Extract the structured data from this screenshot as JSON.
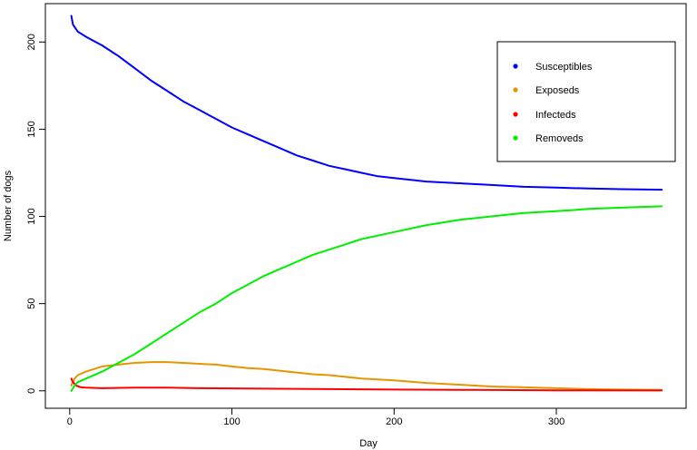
{
  "chart_data": {
    "type": "line",
    "xlabel": "Day",
    "ylabel": "Number of dogs",
    "xlim": [
      -15,
      380
    ],
    "ylim": [
      -10,
      222
    ],
    "xticks": [
      0,
      100,
      200,
      300
    ],
    "yticks": [
      0,
      50,
      100,
      150,
      200
    ],
    "legend_position": "top-right",
    "grid": false,
    "series": [
      {
        "name": "Susceptibles",
        "color": "#0000ff",
        "points": [
          [
            1,
            215
          ],
          [
            2,
            210
          ],
          [
            5,
            206
          ],
          [
            10,
            203
          ],
          [
            20,
            198
          ],
          [
            30,
            192
          ],
          [
            40,
            185
          ],
          [
            50,
            178
          ],
          [
            60,
            172
          ],
          [
            70,
            166
          ],
          [
            80,
            161
          ],
          [
            90,
            156
          ],
          [
            100,
            151
          ],
          [
            110,
            147
          ],
          [
            120,
            143
          ],
          [
            130,
            139
          ],
          [
            140,
            135
          ],
          [
            150,
            132
          ],
          [
            160,
            129
          ],
          [
            170,
            127
          ],
          [
            180,
            125
          ],
          [
            190,
            123
          ],
          [
            200,
            122
          ],
          [
            220,
            120
          ],
          [
            240,
            119
          ],
          [
            260,
            118
          ],
          [
            280,
            117
          ],
          [
            300,
            116.5
          ],
          [
            320,
            116
          ],
          [
            340,
            115.6
          ],
          [
            365,
            115.3
          ]
        ]
      },
      {
        "name": "Exposeds",
        "color": "#e69500",
        "points": [
          [
            1,
            3
          ],
          [
            3,
            7
          ],
          [
            5,
            9
          ],
          [
            10,
            11
          ],
          [
            20,
            14
          ],
          [
            30,
            15
          ],
          [
            40,
            16
          ],
          [
            50,
            16.5
          ],
          [
            60,
            16.5
          ],
          [
            70,
            16
          ],
          [
            80,
            15.5
          ],
          [
            90,
            15
          ],
          [
            100,
            14
          ],
          [
            110,
            13
          ],
          [
            120,
            12.5
          ],
          [
            130,
            11.5
          ],
          [
            140,
            10.5
          ],
          [
            150,
            9.5
          ],
          [
            160,
            9
          ],
          [
            170,
            8
          ],
          [
            180,
            7
          ],
          [
            200,
            6
          ],
          [
            220,
            4.5
          ],
          [
            240,
            3.5
          ],
          [
            260,
            2.5
          ],
          [
            280,
            2
          ],
          [
            300,
            1.5
          ],
          [
            320,
            1
          ],
          [
            340,
            0.7
          ],
          [
            365,
            0.5
          ]
        ]
      },
      {
        "name": "Infecteds",
        "color": "#ff0000",
        "points": [
          [
            1,
            7
          ],
          [
            2,
            5
          ],
          [
            4,
            3
          ],
          [
            7,
            2
          ],
          [
            10,
            1.8
          ],
          [
            20,
            1.5
          ],
          [
            40,
            1.8
          ],
          [
            60,
            1.8
          ],
          [
            80,
            1.5
          ],
          [
            100,
            1.4
          ],
          [
            130,
            1.2
          ],
          [
            160,
            1
          ],
          [
            200,
            0.7
          ],
          [
            250,
            0.5
          ],
          [
            300,
            0.3
          ],
          [
            365,
            0.2
          ]
        ]
      },
      {
        "name": "Removeds",
        "color": "#00ee00",
        "points": [
          [
            1,
            0
          ],
          [
            3,
            3
          ],
          [
            5,
            5
          ],
          [
            10,
            7
          ],
          [
            20,
            11
          ],
          [
            30,
            16
          ],
          [
            40,
            21
          ],
          [
            50,
            27
          ],
          [
            60,
            33
          ],
          [
            70,
            39
          ],
          [
            80,
            45
          ],
          [
            90,
            50
          ],
          [
            100,
            56
          ],
          [
            110,
            61
          ],
          [
            120,
            66
          ],
          [
            130,
            70
          ],
          [
            140,
            74
          ],
          [
            150,
            78
          ],
          [
            160,
            81
          ],
          [
            170,
            84
          ],
          [
            180,
            87
          ],
          [
            190,
            89
          ],
          [
            200,
            91
          ],
          [
            220,
            95
          ],
          [
            240,
            98
          ],
          [
            260,
            100
          ],
          [
            280,
            102
          ],
          [
            300,
            103
          ],
          [
            320,
            104.3
          ],
          [
            340,
            105
          ],
          [
            365,
            105.8
          ]
        ]
      }
    ]
  }
}
